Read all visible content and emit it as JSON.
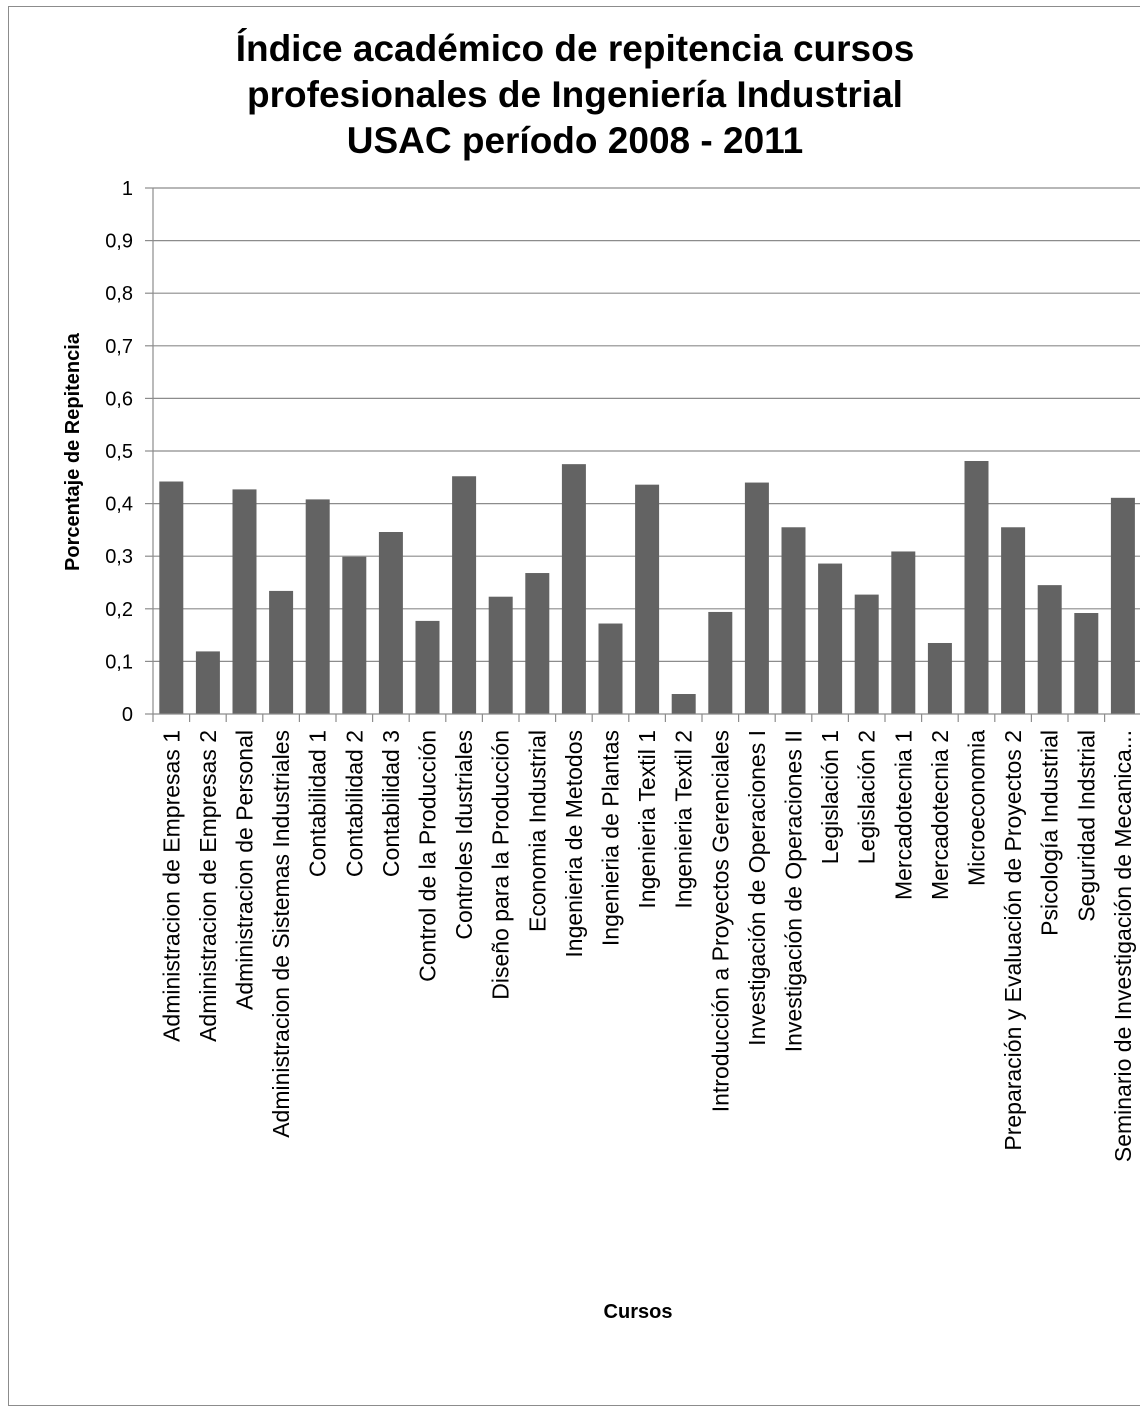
{
  "chart_data": {
    "type": "bar",
    "title_lines": [
      "Índice académico de repitencia cursos",
      "profesionales de Ingeniería Industrial",
      "USAC período 2008 - 2011"
    ],
    "xlabel": "Cursos",
    "ylabel": "Porcentaje de Repitencia",
    "ylim": [
      0,
      1
    ],
    "yticks": [
      "0",
      "0,1",
      "0,2",
      "0,3",
      "0,4",
      "0,5",
      "0,6",
      "0,7",
      "0,8",
      "0,9",
      "1"
    ],
    "grid": true,
    "bar_color": "#636363",
    "categories": [
      "Administracion de Empresas 1",
      "Administracion de Empresas 2",
      "Administracion de Personal",
      "Administracion de Sistemas Industriales",
      "Contabilidad 1",
      "Contabilidad 2",
      "Contabilidad 3",
      "Control de la Producción",
      "Controles Idustriales",
      "Diseño para la Producción",
      "Economia Industrial",
      "Ingenieria de Metodos",
      "Ingenieria de Plantas",
      "Ingenieria Textil 1",
      "Ingenieria Textil 2",
      "Introducción a Proyectos Gerenciales",
      "Investigación de Operaciones I",
      "Investigación de Operaciones II",
      "Legislación 1",
      "Legislación 2",
      "Mercadotecnia 1",
      "Mercadotecnia 2",
      "Microeconomia",
      "Preparación y Evaluación de Proyectos 2",
      "Psicología Industrial",
      "Seguridad Indstrial",
      "Seminario de Investigación de Mecanica..."
    ],
    "values": [
      0.442,
      0.119,
      0.427,
      0.234,
      0.408,
      0.299,
      0.346,
      0.177,
      0.452,
      0.223,
      0.268,
      0.475,
      0.172,
      0.436,
      0.038,
      0.194,
      0.44,
      0.355,
      0.286,
      0.227,
      0.309,
      0.135,
      0.481,
      0.355,
      0.245,
      0.192,
      0.411
    ]
  }
}
